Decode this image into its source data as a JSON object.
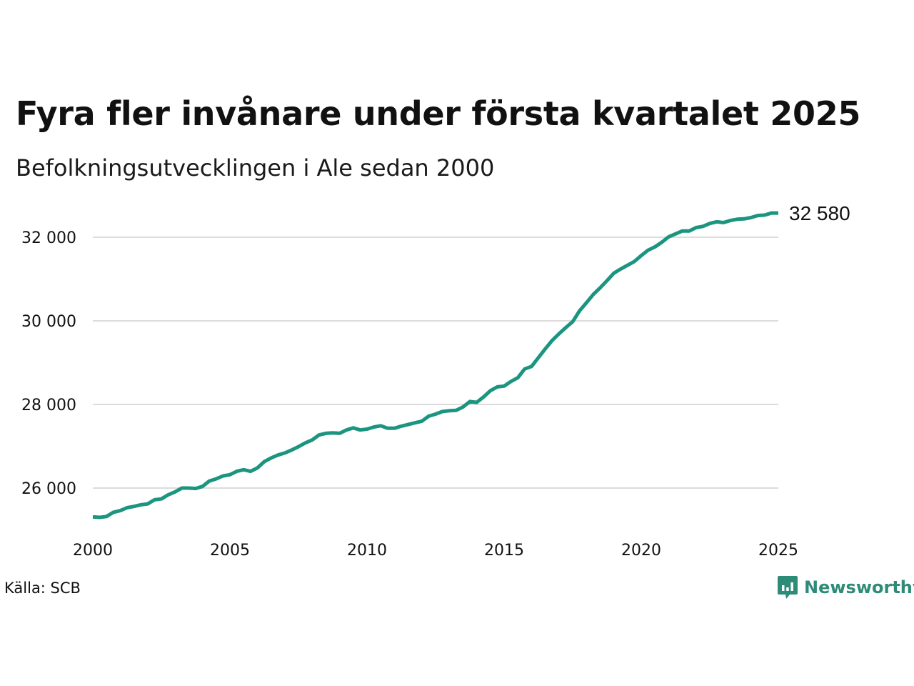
{
  "title": "Fyra fler invånare under första kvartalet 2025",
  "subtitle": "Befolkningsutvecklingen i Ale sedan 2000",
  "source": "Källa: SCB",
  "brand": {
    "name": "Newsworthy",
    "icon": "newsworthy-logo-icon",
    "color": "#2e8b78"
  },
  "colors": {
    "line": "#1b9580",
    "grid": "#dcdcdc"
  },
  "chart_data": {
    "type": "line",
    "title": "Fyra fler invånare under första kvartalet 2025",
    "subtitle": "Befolkningsutvecklingen i Ale sedan 2000",
    "xlabel": "",
    "ylabel": "",
    "xlim": [
      2000,
      2025
    ],
    "ylim": [
      25000,
      33000
    ],
    "x_ticks": [
      2000,
      2005,
      2010,
      2015,
      2020,
      2025
    ],
    "x_tick_labels": [
      "2000",
      "2005",
      "2010",
      "2015",
      "2020",
      "2025"
    ],
    "y_ticks": [
      26000,
      28000,
      30000,
      32000
    ],
    "y_tick_labels": [
      "26 000",
      "28 000",
      "30 000",
      "32 000"
    ],
    "grid": "horizontal",
    "end_label": "32 580",
    "series": [
      {
        "x": [
          2000.0,
          2000.25,
          2000.5,
          2000.75,
          2001.0,
          2001.25,
          2001.5,
          2001.75,
          2002.0,
          2002.25,
          2002.5,
          2002.75,
          2003.0,
          2003.25,
          2003.5,
          2003.75,
          2004.0,
          2004.25,
          2004.5,
          2004.75,
          2005.0,
          2005.25,
          2005.5,
          2005.75,
          2006.0,
          2006.25,
          2006.5,
          2006.75,
          2007.0,
          2007.25,
          2007.5,
          2007.75,
          2008.0,
          2008.25,
          2008.5,
          2008.75,
          2009.0,
          2009.25,
          2009.5,
          2009.75,
          2010.0,
          2010.25,
          2010.5,
          2010.75,
          2011.0,
          2011.25,
          2011.5,
          2011.75,
          2012.0,
          2012.25,
          2012.5,
          2012.75,
          2013.0,
          2013.25,
          2013.5,
          2013.75,
          2014.0,
          2014.25,
          2014.5,
          2014.75,
          2015.0,
          2015.25,
          2015.5,
          2015.75,
          2016.0,
          2016.25,
          2016.5,
          2016.75,
          2017.0,
          2017.25,
          2017.5,
          2017.75,
          2018.0,
          2018.25,
          2018.5,
          2018.75,
          2019.0,
          2019.25,
          2019.5,
          2019.75,
          2020.0,
          2020.25,
          2020.5,
          2020.75,
          2021.0,
          2021.25,
          2021.5,
          2021.75,
          2022.0,
          2022.25,
          2022.5,
          2022.75,
          2023.0,
          2023.25,
          2023.5,
          2023.75,
          2024.0,
          2024.25,
          2024.5,
          2024.75,
          2025.0
        ],
        "values": [
          25310,
          25300,
          25320,
          25420,
          25460,
          25530,
          25560,
          25600,
          25620,
          25720,
          25740,
          25840,
          25910,
          26000,
          26000,
          25990,
          26040,
          26170,
          26220,
          26290,
          26320,
          26400,
          26440,
          26400,
          26480,
          26630,
          26720,
          26790,
          26840,
          26910,
          26990,
          27080,
          27150,
          27270,
          27310,
          27320,
          27310,
          27390,
          27440,
          27390,
          27410,
          27460,
          27490,
          27430,
          27430,
          27480,
          27520,
          27560,
          27600,
          27720,
          27770,
          27830,
          27850,
          27860,
          27940,
          28070,
          28050,
          28180,
          28330,
          28420,
          28440,
          28550,
          28640,
          28850,
          28910,
          29120,
          29330,
          29530,
          29690,
          29840,
          29980,
          30240,
          30430,
          30630,
          30790,
          30960,
          31140,
          31240,
          31330,
          31420,
          31560,
          31690,
          31770,
          31880,
          32010,
          32080,
          32150,
          32150,
          32230,
          32260,
          32330,
          32370,
          32350,
          32400,
          32430,
          32440,
          32470,
          32520,
          32530,
          32580,
          32580
        ]
      }
    ]
  }
}
